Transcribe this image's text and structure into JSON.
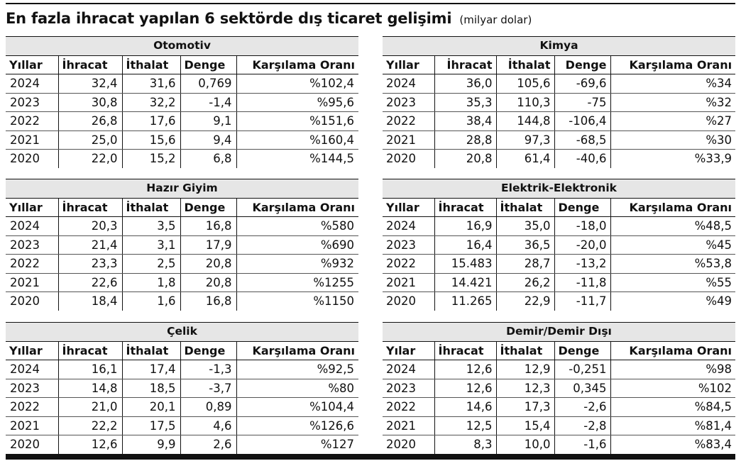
{
  "title": {
    "main": "En fazla ihracat yapılan 6 sektörde dış ticaret gelişimi",
    "unit": "(milyar dolar)"
  },
  "tables": [
    {
      "sector": "Otomotiv",
      "headers": [
        "Yıllar",
        "İhracat",
        "İthalat",
        "Denge",
        "Karşılama Oranı"
      ],
      "rows": [
        [
          "2024",
          "32,4",
          "31,6",
          "0,769",
          "%102,4"
        ],
        [
          "2023",
          "30,8",
          "32,2",
          "-1,4",
          "%95,6"
        ],
        [
          "2022",
          "26,8",
          "17,6",
          "9,1",
          "%151,6"
        ],
        [
          "2021",
          "25,0",
          "15,6",
          "9,4",
          "%160,4"
        ],
        [
          "2020",
          "22,0",
          "15,2",
          "6,8",
          "%144,5"
        ]
      ]
    },
    {
      "sector": "Kimya",
      "headers": [
        "Yıllar",
        "İhracat",
        "İthalat",
        "Denge",
        "Karşılama Oranı"
      ],
      "rows": [
        [
          "2024",
          "36,0",
          "105,6",
          "-69,6",
          "%34"
        ],
        [
          "2023",
          "35,3",
          "110,3",
          "-75",
          "%32"
        ],
        [
          "2022",
          "38,4",
          "144,8",
          "-106,4",
          "%27"
        ],
        [
          "2021",
          "28,8",
          "97,3",
          "-68,5",
          "%30"
        ],
        [
          "2020",
          "20,8",
          "61,4",
          "-40,6",
          "%33,9"
        ]
      ]
    },
    {
      "sector": "Hazır Giyim",
      "headers": [
        "Yıllar",
        "İhracat",
        "İthalat",
        "Denge",
        "Karşılama Oranı"
      ],
      "rows": [
        [
          "2024",
          "20,3",
          "3,5",
          "16,8",
          "%580"
        ],
        [
          "2023",
          "21,4",
          "3,1",
          "17,9",
          "%690"
        ],
        [
          "2022",
          "23,3",
          "2,5",
          "20,8",
          "%932"
        ],
        [
          "2021",
          "22,6",
          "1,8",
          "20,8",
          "%1255"
        ],
        [
          "2020",
          "18,4",
          "1,6",
          "16,8",
          "%1150"
        ]
      ]
    },
    {
      "sector": "Elektrik-Elektronik",
      "headers": [
        "Yıllar",
        "İhracat",
        "İthalat",
        "Denge",
        "Karşılama Oranı"
      ],
      "rows": [
        [
          "2024",
          "16,9",
          "35,0",
          "-18,0",
          "%48,5"
        ],
        [
          "2023",
          "16,4",
          "36,5",
          "-20,0",
          "%45"
        ],
        [
          "2022",
          "15.483",
          "28,7",
          "-13,2",
          "%53,8"
        ],
        [
          "2021",
          "14.421",
          "26,2",
          "-11,8",
          "%55"
        ],
        [
          "2020",
          "11.265",
          "22,9",
          "-11,7",
          "%49"
        ]
      ]
    },
    {
      "sector": "Çelik",
      "headers": [
        "Yıllar",
        "İhracat",
        "İthalat",
        "Denge",
        "Karşılama Oranı"
      ],
      "rows": [
        [
          "2024",
          "16,1",
          "17,4",
          "-1,3",
          "%92,5"
        ],
        [
          "2023",
          "14,8",
          "18,5",
          "-3,7",
          "%80"
        ],
        [
          "2022",
          "21,0",
          "20,1",
          "0,89",
          "%104,4"
        ],
        [
          "2021",
          "22,2",
          "17,5",
          "4,6",
          "%126,6"
        ],
        [
          "2020",
          "12,6",
          "9,9",
          "2,6",
          "%127"
        ]
      ]
    },
    {
      "sector": "Demir/Demir Dışı",
      "headers": [
        "Yılar",
        "İhracat",
        "İthalat",
        "Denge",
        "Karşılama Oranı"
      ],
      "rows": [
        [
          "2024",
          "12,6",
          "12,9",
          "-0,251",
          "%98"
        ],
        [
          "2023",
          "12,6",
          "12,3",
          "0,345",
          "%102"
        ],
        [
          "2022",
          "14,6",
          "17,3",
          "-2,6",
          "%84,5"
        ],
        [
          "2021",
          "12,5",
          "15,4",
          "-2,8",
          "%81,4"
        ],
        [
          "2020",
          "8,3",
          "10,0",
          "-1,6",
          "%83,4"
        ]
      ]
    }
  ]
}
